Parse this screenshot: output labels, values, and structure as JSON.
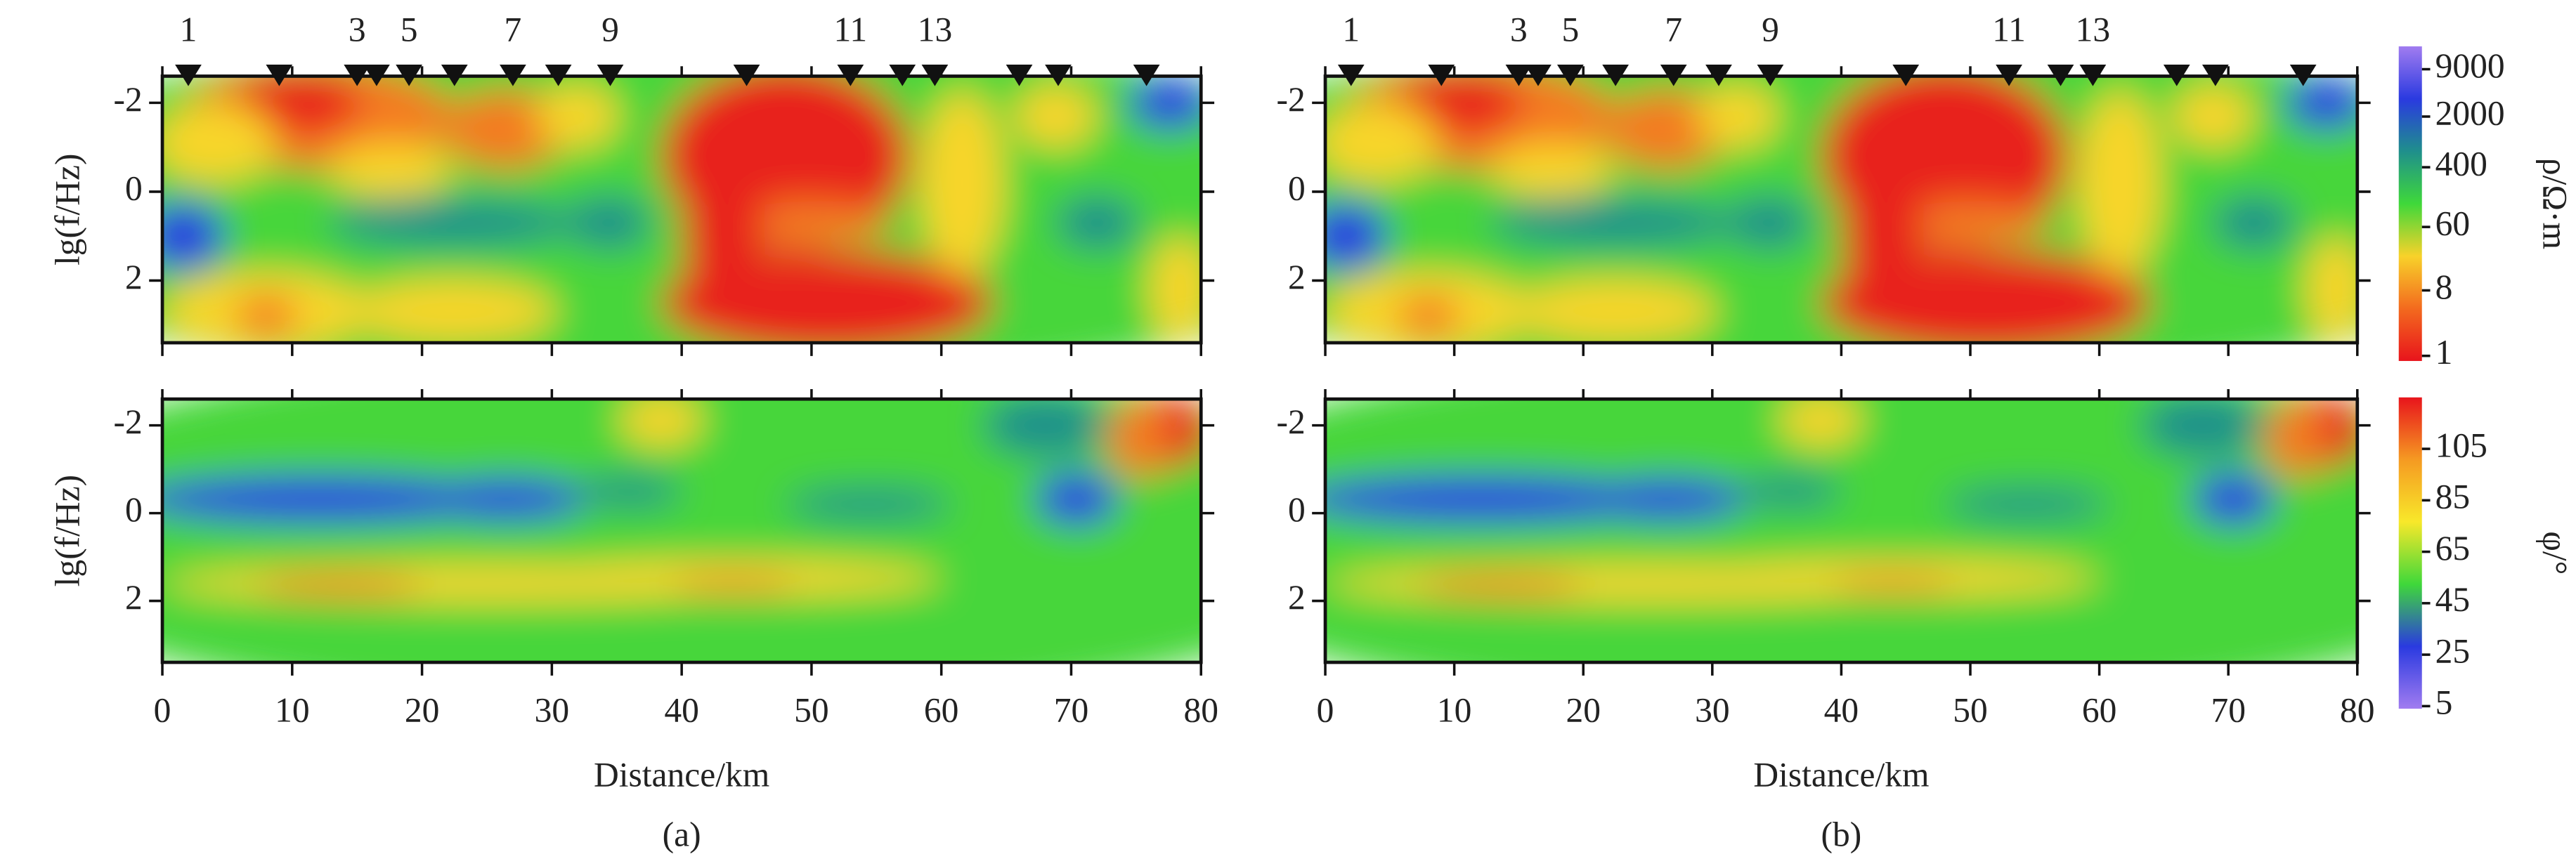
{
  "chart_data": [
    {
      "type": "contour",
      "ylabel": "lg(f/Hz)",
      "xlim": [
        0,
        80
      ],
      "xticks": [
        0,
        10,
        20,
        30,
        40,
        50,
        60,
        70,
        80
      ],
      "ylim": [
        -2.6,
        3.4
      ],
      "yticks": [
        -2,
        0,
        2
      ],
      "stations": {
        "x": [
          2,
          9,
          15,
          16.5,
          19,
          22.5,
          27,
          30.5,
          34.5,
          45,
          53,
          57,
          59.5,
          66,
          69,
          75.8
        ],
        "labels": [
          1,
          null,
          3,
          null,
          5,
          null,
          7,
          null,
          9,
          null,
          11,
          null,
          13,
          null,
          null,
          null
        ]
      }
    },
    {
      "type": "contour",
      "xlim": [
        0,
        80
      ],
      "xticks": [
        0,
        10,
        20,
        30,
        40,
        50,
        60,
        70,
        80
      ],
      "ylim": [
        -2.6,
        3.4
      ],
      "yticks": [
        -2,
        0,
        2
      ],
      "stations": {
        "x": [
          2,
          9,
          15,
          16.5,
          19,
          22.5,
          27,
          30.5,
          34.5,
          45,
          53,
          57,
          59.5,
          66,
          69,
          75.8
        ],
        "labels": [
          1,
          null,
          3,
          null,
          5,
          null,
          7,
          null,
          9,
          null,
          11,
          null,
          13,
          null,
          null,
          null
        ]
      },
      "colorbar": {
        "label": "ρ/Ω·m",
        "log": true,
        "clim": [
          0.85,
          18600
        ],
        "ticks": [
          1,
          8,
          60,
          400,
          2000,
          9000
        ],
        "colors": [
          "#e8141c",
          "#f36a1e",
          "#f8d22a",
          "#3fd83a",
          "#1f8f8c",
          "#2a3ae0",
          "#a17cf0"
        ]
      }
    },
    {
      "type": "contour",
      "ylabel": "lg(f/Hz)",
      "xlabel": "Distance/km",
      "caption": "(a)",
      "xlim": [
        0,
        80
      ],
      "xticks": [
        0,
        10,
        20,
        30,
        40,
        50,
        60,
        70,
        80
      ],
      "ylim": [
        -2.6,
        3.4
      ],
      "yticks": [
        -2,
        0,
        2
      ]
    },
    {
      "type": "contour",
      "xlabel": "Distance/km",
      "caption": "(b)",
      "xlim": [
        0,
        80
      ],
      "xticks": [
        0,
        10,
        20,
        30,
        40,
        50,
        60,
        70,
        80
      ],
      "ylim": [
        -2.6,
        3.4
      ],
      "yticks": [
        -2,
        0,
        2
      ],
      "colorbar": {
        "label": "φ/°",
        "log": false,
        "clim": [
          4,
          125
        ],
        "ticks": [
          5,
          25,
          45,
          65,
          85,
          105
        ],
        "colors": [
          "#a17cf0",
          "#2a3ae0",
          "#3fd83a",
          "#f8e82a",
          "#f59a22",
          "#e8141c"
        ]
      }
    }
  ]
}
